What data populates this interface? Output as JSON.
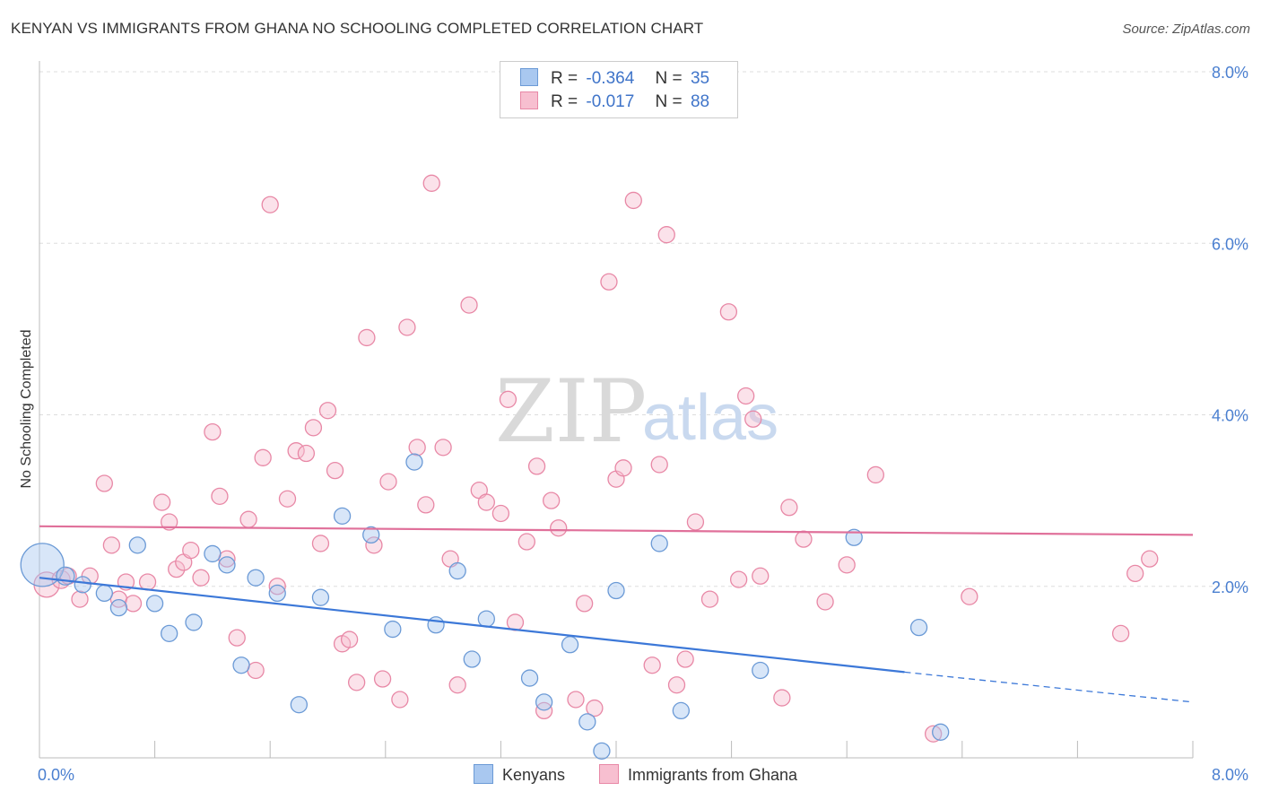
{
  "header": {
    "title": "KENYAN VS IMMIGRANTS FROM GHANA NO SCHOOLING COMPLETED CORRELATION CHART",
    "source": "Source: ZipAtlas.com"
  },
  "legend": {
    "rows": [
      {
        "r_label": "R =",
        "r_value": "-0.364",
        "n_label": "N =",
        "n_value": "35"
      },
      {
        "r_label": "R =",
        "r_value": "-0.017",
        "n_label": "N =",
        "n_value": "88"
      }
    ]
  },
  "bottom_legend": [
    {
      "label": "Kenyans"
    },
    {
      "label": "Immigrants from Ghana"
    }
  ],
  "watermark": {
    "zip": "ZIP",
    "atlas": "atlas"
  },
  "colors": {
    "kenyan_fill": "#a9c8f0",
    "kenyan_stroke": "#6b9ad6",
    "kenyan_line": "#3c78d8",
    "ghana_fill": "#f7bfd0",
    "ghana_stroke": "#e888a6",
    "ghana_line": "#e0709a",
    "tick": "#4a7fd0",
    "grid": "#dddddd"
  },
  "chart_data": {
    "type": "scatter",
    "ylabel": "No Schooling Completed",
    "xlim": [
      0,
      8
    ],
    "ylim": [
      0,
      8
    ],
    "x_tick_labels": [
      {
        "value": 0,
        "label": "0.0%"
      },
      {
        "value": 8,
        "label": "8.0%"
      }
    ],
    "y_tick_labels": [
      {
        "value": 2,
        "label": "2.0%"
      },
      {
        "value": 4,
        "label": "4.0%"
      },
      {
        "value": 6,
        "label": "6.0%"
      },
      {
        "value": 8,
        "label": "8.0%"
      }
    ],
    "series": [
      {
        "name": "Kenyans",
        "trend": {
          "x0": 0,
          "y0": 2.1,
          "x1": 6.0,
          "y1": 1.0,
          "dash_to_x": 8.0,
          "dash_to_y": 0.65
        },
        "points": [
          [
            0.02,
            2.25,
            24
          ],
          [
            0.18,
            2.12,
            10
          ],
          [
            0.3,
            2.02,
            9
          ],
          [
            0.45,
            1.92,
            9
          ],
          [
            0.55,
            1.75,
            9
          ],
          [
            0.68,
            2.48,
            9
          ],
          [
            0.8,
            1.8,
            9
          ],
          [
            0.9,
            1.45,
            9
          ],
          [
            1.07,
            1.58,
            9
          ],
          [
            1.2,
            2.38,
            9
          ],
          [
            1.3,
            2.25,
            9
          ],
          [
            1.4,
            1.08,
            9
          ],
          [
            1.5,
            2.1,
            9
          ],
          [
            1.65,
            1.92,
            9
          ],
          [
            1.8,
            0.62,
            9
          ],
          [
            1.95,
            1.87,
            9
          ],
          [
            2.1,
            2.82,
            9
          ],
          [
            2.3,
            2.6,
            9
          ],
          [
            2.45,
            1.5,
            9
          ],
          [
            2.6,
            3.45,
            9
          ],
          [
            2.75,
            1.55,
            9
          ],
          [
            2.9,
            2.18,
            9
          ],
          [
            3.0,
            1.15,
            9
          ],
          [
            3.1,
            1.62,
            9
          ],
          [
            3.4,
            0.93,
            9
          ],
          [
            3.5,
            0.65,
            9
          ],
          [
            3.68,
            1.32,
            9
          ],
          [
            3.8,
            0.42,
            9
          ],
          [
            3.9,
            0.08,
            9
          ],
          [
            4.0,
            1.95,
            9
          ],
          [
            4.3,
            2.5,
            9
          ],
          [
            4.45,
            0.55,
            9
          ],
          [
            5.0,
            1.02,
            9
          ],
          [
            5.65,
            2.57,
            9
          ],
          [
            6.1,
            1.52,
            9
          ],
          [
            6.25,
            0.3,
            9
          ]
        ]
      },
      {
        "name": "Immigrants from Ghana",
        "trend": {
          "x0": 0,
          "y0": 2.7,
          "x1": 8.0,
          "y1": 2.6
        },
        "points": [
          [
            0.05,
            2.02,
            14
          ],
          [
            0.15,
            2.08,
            10
          ],
          [
            0.2,
            2.12,
            9
          ],
          [
            0.28,
            1.85,
            9
          ],
          [
            0.35,
            2.12,
            9
          ],
          [
            0.45,
            3.2,
            9
          ],
          [
            0.5,
            2.48,
            9
          ],
          [
            0.55,
            1.85,
            9
          ],
          [
            0.6,
            2.05,
            9
          ],
          [
            0.65,
            1.8,
            9
          ],
          [
            0.75,
            2.05,
            9
          ],
          [
            0.85,
            2.98,
            9
          ],
          [
            0.9,
            2.75,
            9
          ],
          [
            0.95,
            2.2,
            9
          ],
          [
            1.0,
            2.28,
            9
          ],
          [
            1.05,
            2.42,
            9
          ],
          [
            1.12,
            2.1,
            9
          ],
          [
            1.2,
            3.8,
            9
          ],
          [
            1.25,
            3.05,
            9
          ],
          [
            1.3,
            2.32,
            9
          ],
          [
            1.37,
            1.4,
            9
          ],
          [
            1.45,
            2.78,
            9
          ],
          [
            1.5,
            1.02,
            9
          ],
          [
            1.55,
            3.5,
            9
          ],
          [
            1.6,
            6.45,
            9
          ],
          [
            1.65,
            2.0,
            9
          ],
          [
            1.72,
            3.02,
            9
          ],
          [
            1.78,
            3.58,
            9
          ],
          [
            1.85,
            3.55,
            9
          ],
          [
            1.9,
            3.85,
            9
          ],
          [
            1.95,
            2.5,
            9
          ],
          [
            2.0,
            4.05,
            9
          ],
          [
            2.05,
            3.35,
            9
          ],
          [
            2.1,
            1.33,
            9
          ],
          [
            2.15,
            1.38,
            9
          ],
          [
            2.2,
            0.88,
            9
          ],
          [
            2.27,
            4.9,
            9
          ],
          [
            2.32,
            2.48,
            9
          ],
          [
            2.38,
            0.92,
            9
          ],
          [
            2.42,
            3.22,
            9
          ],
          [
            2.5,
            0.68,
            9
          ],
          [
            2.55,
            5.02,
            9
          ],
          [
            2.62,
            3.62,
            9
          ],
          [
            2.68,
            2.95,
            9
          ],
          [
            2.72,
            6.7,
            9
          ],
          [
            2.8,
            3.62,
            9
          ],
          [
            2.85,
            2.32,
            9
          ],
          [
            2.9,
            0.85,
            9
          ],
          [
            2.98,
            5.28,
            9
          ],
          [
            3.05,
            3.12,
            9
          ],
          [
            3.1,
            2.98,
            9
          ],
          [
            3.2,
            2.85,
            9
          ],
          [
            3.25,
            4.18,
            9
          ],
          [
            3.3,
            1.58,
            9
          ],
          [
            3.38,
            2.52,
            9
          ],
          [
            3.45,
            3.4,
            9
          ],
          [
            3.5,
            0.55,
            9
          ],
          [
            3.55,
            3.0,
            9
          ],
          [
            3.6,
            2.68,
            9
          ],
          [
            3.72,
            0.68,
            9
          ],
          [
            3.78,
            1.8,
            9
          ],
          [
            3.85,
            0.58,
            9
          ],
          [
            3.95,
            5.55,
            9
          ],
          [
            4.0,
            3.25,
            9
          ],
          [
            4.05,
            3.38,
            9
          ],
          [
            4.12,
            6.5,
            9
          ],
          [
            4.25,
            1.08,
            9
          ],
          [
            4.3,
            3.42,
            9
          ],
          [
            4.35,
            6.1,
            9
          ],
          [
            4.42,
            0.85,
            9
          ],
          [
            4.48,
            1.15,
            9
          ],
          [
            4.55,
            2.75,
            9
          ],
          [
            4.65,
            1.85,
            9
          ],
          [
            4.78,
            5.2,
            9
          ],
          [
            4.85,
            2.08,
            9
          ],
          [
            4.9,
            4.22,
            9
          ],
          [
            4.95,
            3.95,
            9
          ],
          [
            5.0,
            2.12,
            9
          ],
          [
            5.15,
            0.7,
            9
          ],
          [
            5.2,
            2.92,
            9
          ],
          [
            5.3,
            2.55,
            9
          ],
          [
            5.45,
            1.82,
            9
          ],
          [
            5.6,
            2.25,
            9
          ],
          [
            5.8,
            3.3,
            9
          ],
          [
            6.2,
            0.28,
            9
          ],
          [
            6.45,
            1.88,
            9
          ],
          [
            7.5,
            1.45,
            9
          ],
          [
            7.6,
            2.15,
            9
          ],
          [
            7.7,
            2.32,
            9
          ]
        ]
      }
    ]
  }
}
